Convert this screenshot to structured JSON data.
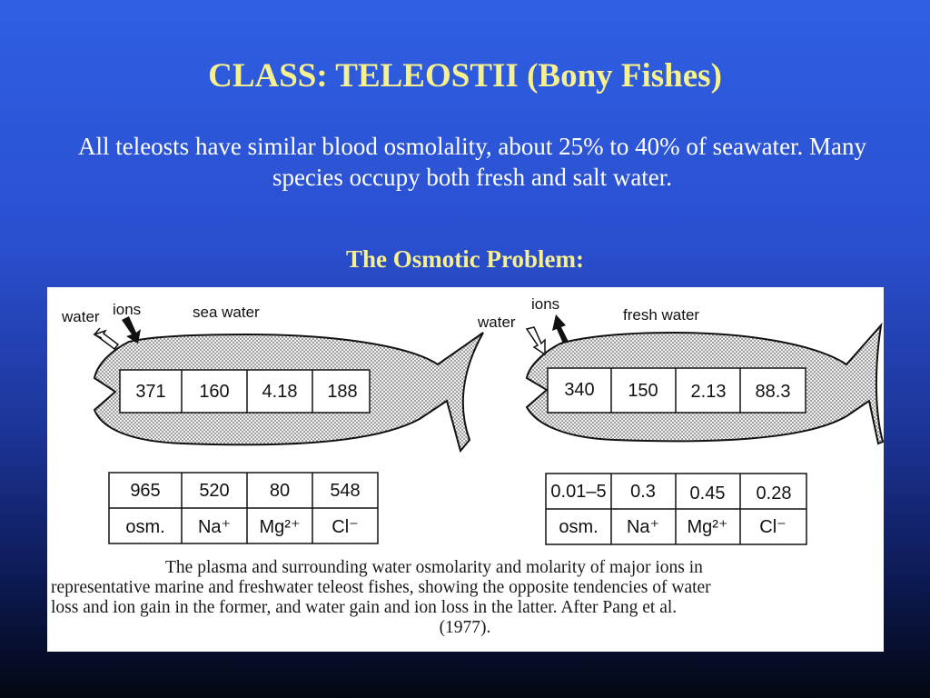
{
  "slide": {
    "title": "CLASS:  TELEOSTII (Bony Fishes)",
    "intro": "All teleosts have similar blood osmolality, about 25% to 40% of seawater.  Many species occupy both fresh and salt water.",
    "subtitle": "The Osmotic Problem:"
  },
  "figure": {
    "marine": {
      "label_water": "water",
      "label_ions": "ions",
      "label_env": "sea water",
      "plasma": [
        "371",
        "160",
        "4.18",
        "188"
      ],
      "surrounding": [
        "965",
        "520",
        "80",
        "548"
      ],
      "header": [
        "osm.",
        "Na⁺",
        "Mg²⁺",
        "Cl⁻"
      ]
    },
    "freshwater": {
      "label_water": "water",
      "label_ions": "ions",
      "label_env": "fresh water",
      "plasma": [
        "340",
        "150",
        "2.13",
        "88.3"
      ],
      "surrounding": [
        "0.01–5",
        "0.3",
        "0.45",
        "0.28"
      ],
      "header": [
        "osm.",
        "Na⁺",
        "Mg²⁺",
        "Cl⁻"
      ]
    },
    "caption_lines": [
      "The plasma and surrounding water osmolarity and molarity of major ions in",
      "representative marine and freshwater teleost fishes, showing the opposite tendencies of water",
      "loss and ion gain in the former, and water gain and ion loss in the latter. After Pang et al.",
      "(1977)."
    ]
  }
}
